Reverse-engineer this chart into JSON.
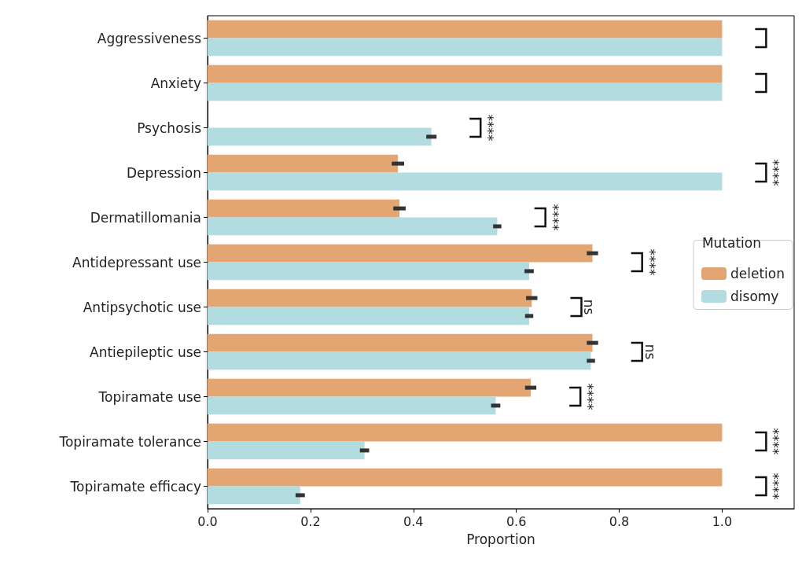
{
  "chart_data": {
    "type": "bar",
    "orientation": "horizontal",
    "xlabel": "Proportion",
    "legend_title": "Mutation",
    "legend": "right",
    "categories": [
      "Aggressiveness",
      "Anxiety",
      "Psychosis",
      "Depression",
      "Dermatillomania",
      "Antidepressant use",
      "Antipsychotic use",
      "Antiepileptic use",
      "Topiramate use",
      "Topiramate tolerance",
      "Topiramate efficacy"
    ],
    "series": [
      {
        "name": "deletion",
        "color": "#e3a572",
        "values": [
          1.0,
          1.0,
          0,
          0.37,
          0.373,
          0.748,
          0.63,
          0.748,
          0.628,
          1.0,
          1.0
        ],
        "errors": [
          null,
          null,
          null,
          0.012,
          0.012,
          0.011,
          0.011,
          0.011,
          0.011,
          null,
          null
        ]
      },
      {
        "name": "disomy",
        "color": "#b3dce0",
        "values": [
          1.0,
          1.0,
          0.435,
          1.0,
          0.563,
          0.625,
          0.625,
          0.745,
          0.56,
          0.305,
          0.18
        ],
        "errors": [
          null,
          null,
          0.01,
          null,
          0.008,
          0.009,
          0.008,
          0.008,
          0.009,
          0.009,
          0.009
        ]
      }
    ],
    "xlim": [
      0,
      1.14
    ],
    "xticks": [
      {
        "value": 0,
        "label": "0.0"
      },
      0.2,
      0.4,
      0.6,
      0.8,
      {
        "value": 1,
        "label": "1.0"
      }
    ],
    "grid": false,
    "annotations": [
      "****",
      "****",
      "****",
      "****",
      "ns",
      "ns",
      "****",
      "****",
      "****"
    ]
  }
}
